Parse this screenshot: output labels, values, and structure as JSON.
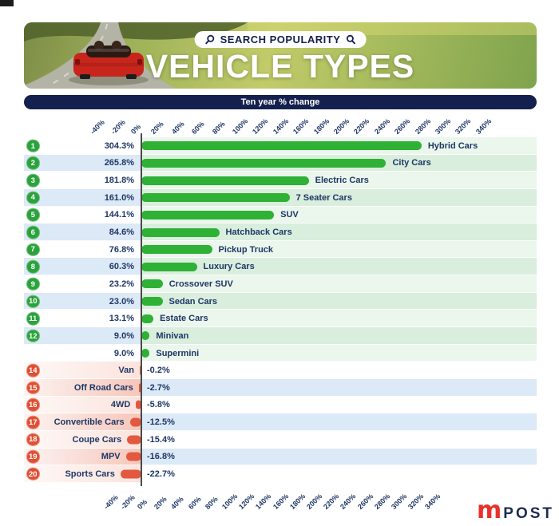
{
  "header": {
    "badge_label": "SEARCH POPULARITY",
    "title": "VEHICLE TYPES",
    "subtitle": "Ten year % change"
  },
  "axis": {
    "tick_labels": [
      "-40%",
      "-20%",
      "0%",
      "20%",
      "40%",
      "60%",
      "80%",
      "100%",
      "120%",
      "140%",
      "160%",
      "180%",
      "200%",
      "220%",
      "240%",
      "260%",
      "280%",
      "300%",
      "320%",
      "340%"
    ]
  },
  "chart_data": {
    "type": "bar",
    "orientation": "horizontal",
    "title": "SEARCH POPULARITY — VEHICLE TYPES",
    "xlabel": "Ten year % change",
    "xlim": [
      -40,
      340
    ],
    "tick_step": 20,
    "grid": false,
    "legend": "none",
    "categories": [
      "Hybrid Cars",
      "City Cars",
      "Electric Cars",
      "7 Seater Cars",
      "SUV",
      "Hatchback Cars",
      "Pickup Truck",
      "Luxury Cars",
      "Crossover SUV",
      "Sedan Cars",
      "Estate Cars",
      "Minivan",
      "Supermini",
      "Van",
      "Off Road Cars",
      "4WD",
      "Convertible Cars",
      "Coupe Cars",
      "MPV",
      "Sports Cars"
    ],
    "values": [
      304.3,
      265.8,
      181.8,
      161.0,
      144.1,
      84.6,
      76.8,
      60.3,
      23.2,
      23.0,
      13.1,
      9.0,
      9.0,
      -0.2,
      -2.7,
      -5.8,
      -12.5,
      -15.4,
      -16.8,
      -22.7
    ],
    "rows": [
      {
        "rank": "1",
        "label": "Hybrid Cars",
        "value": 304.3,
        "value_label": "304.3%"
      },
      {
        "rank": "2",
        "label": "City Cars",
        "value": 265.8,
        "value_label": "265.8%"
      },
      {
        "rank": "3",
        "label": "Electric Cars",
        "value": 181.8,
        "value_label": "181.8%"
      },
      {
        "rank": "4",
        "label": "7 Seater Cars",
        "value": 161.0,
        "value_label": "161.0%"
      },
      {
        "rank": "5",
        "label": "SUV",
        "value": 144.1,
        "value_label": "144.1%"
      },
      {
        "rank": "6",
        "label": "Hatchback Cars",
        "value": 84.6,
        "value_label": "84.6%"
      },
      {
        "rank": "7",
        "label": "Pickup Truck",
        "value": 76.8,
        "value_label": "76.8%"
      },
      {
        "rank": "8",
        "label": "Luxury Cars",
        "value": 60.3,
        "value_label": "60.3%"
      },
      {
        "rank": "9",
        "label": "Crossover SUV",
        "value": 23.2,
        "value_label": "23.2%"
      },
      {
        "rank": "10",
        "label": "Sedan Cars",
        "value": 23.0,
        "value_label": "23.0%"
      },
      {
        "rank": "11",
        "label": "Estate Cars",
        "value": 13.1,
        "value_label": "13.1%"
      },
      {
        "rank": "12",
        "label": "Minivan",
        "value": 9.0,
        "value_label": "9.0%"
      },
      {
        "rank": "",
        "label": "Supermini",
        "value": 9.0,
        "value_label": "9.0%"
      },
      {
        "rank": "14",
        "label": "Van",
        "value": -0.2,
        "value_label": "-0.2%"
      },
      {
        "rank": "15",
        "label": "Off Road Cars",
        "value": -2.7,
        "value_label": "-2.7%"
      },
      {
        "rank": "16",
        "label": "4WD",
        "value": -5.8,
        "value_label": "-5.8%"
      },
      {
        "rank": "17",
        "label": "Convertible Cars",
        "value": -12.5,
        "value_label": "-12.5%"
      },
      {
        "rank": "18",
        "label": "Coupe Cars",
        "value": -15.4,
        "value_label": "-15.4%"
      },
      {
        "rank": "19",
        "label": "MPV",
        "value": -16.8,
        "value_label": "-16.8%"
      },
      {
        "rank": "20",
        "label": "Sports Cars",
        "value": -22.7,
        "value_label": "-22.7%"
      }
    ]
  },
  "colors": {
    "navy_dark": "#14204e",
    "navy_text": "#1e3766",
    "green_bar": "#2eb135",
    "green_badge": "#2ba23c",
    "red_bar": "#e25840",
    "red_badge": "#df4f33",
    "band_blue": "#dce9f6",
    "band_green_strong": "#d9eedd",
    "band_green_light": "#ebf6ec",
    "band_pink_strong": "#f5c6ba",
    "band_pink_light": "#fbe3dc",
    "logo_red": "#e8312a"
  },
  "footer": {
    "logo_mark": "m",
    "logo_text": "POST"
  }
}
